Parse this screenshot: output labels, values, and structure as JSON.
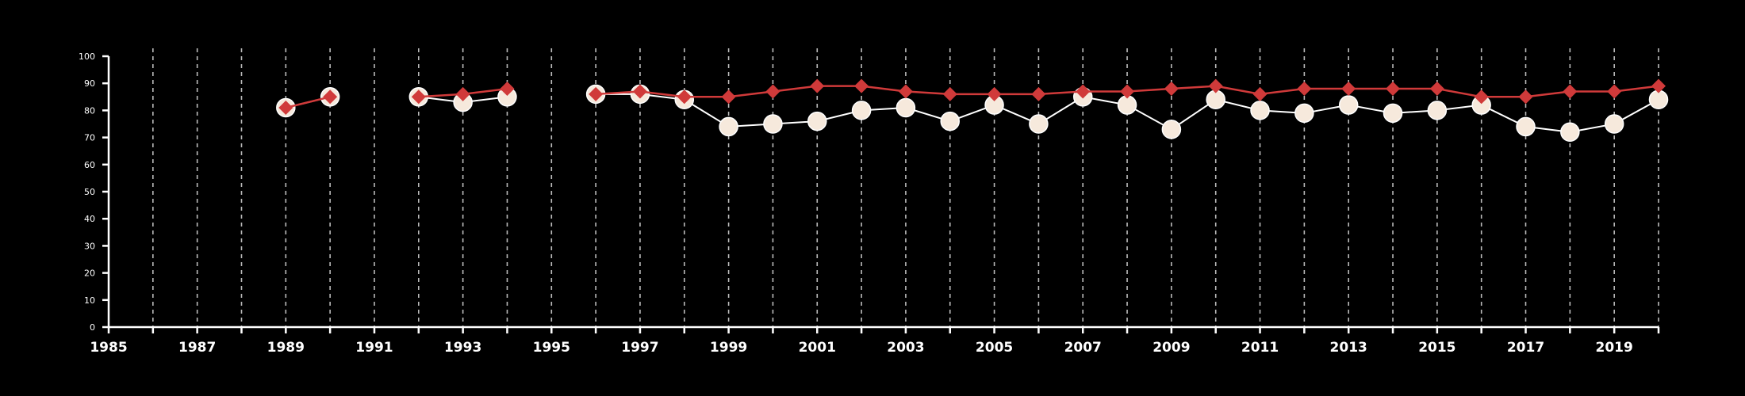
{
  "colors": {
    "background": "#000000",
    "axis": "#ffffff",
    "grid": "#bbbbbb",
    "series_a_line": "#ffffff",
    "series_a_marker": "#f6e9dc",
    "series_b": "#d03a3a"
  },
  "chart_data": {
    "type": "line",
    "title": "",
    "xlabel": "",
    "ylabel": "",
    "xlim": [
      1985,
      2020
    ],
    "ylim": [
      0,
      100
    ],
    "grid": "vertical dashed",
    "legend": "none",
    "x_ticks": [
      1985,
      1987,
      1989,
      1991,
      1993,
      1995,
      1997,
      1999,
      2001,
      2003,
      2005,
      2007,
      2009,
      2011,
      2013,
      2015,
      2017,
      2019
    ],
    "y_ticks": [
      0,
      10,
      20,
      30,
      40,
      50,
      60,
      70,
      80,
      90,
      100
    ],
    "x": [
      1985,
      1986,
      1987,
      1988,
      1989,
      1990,
      1991,
      1992,
      1993,
      1994,
      1995,
      1996,
      1997,
      1998,
      1999,
      2000,
      2001,
      2002,
      2003,
      2004,
      2005,
      2006,
      2007,
      2008,
      2009,
      2010,
      2011,
      2012,
      2013,
      2014,
      2015,
      2016,
      2017,
      2018,
      2019,
      2020
    ],
    "series": [
      {
        "marker": "circle",
        "values": [
          null,
          null,
          null,
          null,
          81,
          85,
          null,
          85,
          83,
          85,
          null,
          86,
          86,
          84,
          74,
          75,
          76,
          80,
          81,
          76,
          82,
          75,
          85,
          82,
          73,
          84,
          80,
          79,
          82,
          79,
          80,
          82,
          74,
          72,
          75,
          84
        ]
      },
      {
        "marker": "diamond",
        "values": [
          null,
          null,
          null,
          null,
          81,
          85,
          null,
          85,
          86,
          88,
          null,
          86,
          87,
          85,
          85,
          87,
          89,
          89,
          87,
          86,
          86,
          86,
          87,
          87,
          88,
          89,
          86,
          88,
          88,
          88,
          88,
          85,
          85,
          87,
          87,
          89
        ]
      }
    ]
  }
}
